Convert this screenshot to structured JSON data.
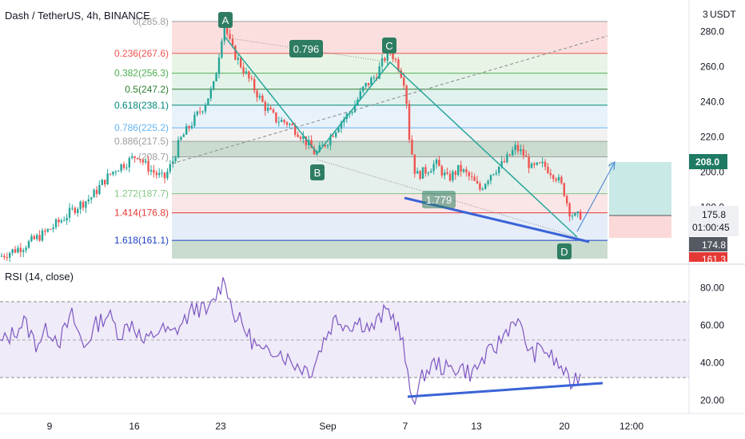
{
  "header": {
    "symbol": "Dash / TetherUS, 4h, BINANCE",
    "currency": "USDT",
    "currency_prefix": "3"
  },
  "colors": {
    "up": "#26a69a",
    "down": "#ef5350",
    "harmonic": "#26a69a",
    "trendline": "#3a63d6",
    "rsi": "#7e57c2",
    "label_green": "#2e7d62"
  },
  "chart_data": [
    {
      "type": "candlestick",
      "title": "Dash / TetherUS, 4h, BINANCE",
      "ylim": [
        148,
        298
      ],
      "price_axis_ticks": [
        {
          "value": 280,
          "label": "280.0"
        },
        {
          "value": 260,
          "label": "260.0"
        },
        {
          "value": 240,
          "label": "240.0"
        },
        {
          "value": 220,
          "label": "220.0"
        },
        {
          "value": 200,
          "label": "200.0"
        },
        {
          "value": 180,
          "label": "180.0"
        }
      ],
      "time_axis_labels": [
        "9",
        "16",
        "23",
        "Sep",
        "7",
        "13",
        "20",
        "12:00"
      ],
      "ohlc_path_points": [
        [
          0,
          152
        ],
        [
          10,
          154
        ],
        [
          30,
          158
        ],
        [
          55,
          165
        ],
        [
          75,
          172
        ],
        [
          95,
          180
        ],
        [
          115,
          186
        ],
        [
          130,
          195
        ],
        [
          145,
          202
        ],
        [
          160,
          206
        ],
        [
          172,
          210
        ],
        [
          182,
          204
        ],
        [
          192,
          200
        ],
        [
          205,
          196
        ],
        [
          215,
          205
        ],
        [
          225,
          218
        ],
        [
          240,
          228
        ],
        [
          255,
          238
        ],
        [
          268,
          250
        ],
        [
          280,
          285
        ],
        [
          290,
          270
        ],
        [
          300,
          262
        ],
        [
          315,
          250
        ],
        [
          330,
          238
        ],
        [
          345,
          230
        ],
        [
          360,
          228
        ],
        [
          375,
          222
        ],
        [
          395,
          210
        ],
        [
          410,
          218
        ],
        [
          425,
          228
        ],
        [
          440,
          235
        ],
        [
          455,
          248
        ],
        [
          470,
          255
        ],
        [
          487,
          270
        ],
        [
          497,
          262
        ],
        [
          507,
          250
        ],
        [
          512,
          220
        ],
        [
          520,
          198
        ],
        [
          530,
          200
        ],
        [
          545,
          205
        ],
        [
          560,
          196
        ],
        [
          575,
          202
        ],
        [
          590,
          196
        ],
        [
          600,
          190
        ],
        [
          615,
          200
        ],
        [
          630,
          205
        ],
        [
          645,
          214
        ],
        [
          655,
          210
        ],
        [
          665,
          202
        ],
        [
          680,
          204
        ],
        [
          695,
          198
        ],
        [
          705,
          190
        ],
        [
          712,
          178
        ],
        [
          720,
          174
        ],
        [
          728,
          176
        ]
      ],
      "fib_levels": [
        {
          "ratio": "0",
          "price": 285.8,
          "label": "0(285.8)"
        },
        {
          "ratio": "0.236",
          "price": 267.6,
          "label": "0.236(267.6)"
        },
        {
          "ratio": "0.382",
          "price": 256.3,
          "label": "0.382(256.3)"
        },
        {
          "ratio": "0.5",
          "price": 247.2,
          "label": "0.5(247.2)"
        },
        {
          "ratio": "0.618",
          "price": 238.1,
          "label": "0.618(238.1)"
        },
        {
          "ratio": "0.786",
          "price": 225.2,
          "label": "0.786(225.2)"
        },
        {
          "ratio": "0.886",
          "price": 217.5,
          "label": "0.886(217.5)"
        },
        {
          "ratio": "1",
          "price": 208.7,
          "label": "(208.7)"
        },
        {
          "ratio": "1.272",
          "price": 187.7,
          "label": "1.272(187.7)"
        },
        {
          "ratio": "1.414",
          "price": 176.8,
          "label": "1.414(176.8)"
        },
        {
          "ratio": "1.618",
          "price": 161.1,
          "label": "1.618(161.1)"
        }
      ],
      "harmonic_points": [
        {
          "label": "A",
          "price": 285.8
        },
        {
          "label": "B",
          "price": 210
        },
        {
          "label": "C",
          "price": 270
        },
        {
          "label": "D",
          "price": 161
        }
      ],
      "harmonic_ratios": [
        "0.796",
        "1.779"
      ],
      "price_tags": [
        {
          "value": "208.0",
          "kind": "target"
        },
        {
          "value": "175.8",
          "countdown": "01:00:45",
          "kind": "last"
        },
        {
          "value": "174.8",
          "kind": "level"
        },
        {
          "value": "161.3",
          "kind": "stop"
        }
      ]
    },
    {
      "type": "line",
      "title": "RSI (14, close)",
      "ylim": [
        13,
        92
      ],
      "y_ticks": [
        "80.00",
        "60.00",
        "40.00",
        "20.00"
      ],
      "bands": {
        "upper": 70,
        "middle": 50,
        "lower": 30
      },
      "rsi_path_points": [
        [
          0,
          50
        ],
        [
          15,
          55
        ],
        [
          30,
          62
        ],
        [
          45,
          50
        ],
        [
          60,
          58
        ],
        [
          75,
          52
        ],
        [
          90,
          65
        ],
        [
          105,
          48
        ],
        [
          120,
          60
        ],
        [
          135,
          66
        ],
        [
          150,
          55
        ],
        [
          165,
          62
        ],
        [
          180,
          50
        ],
        [
          200,
          58
        ],
        [
          215,
          55
        ],
        [
          230,
          62
        ],
        [
          245,
          70
        ],
        [
          260,
          66
        ],
        [
          275,
          80
        ],
        [
          282,
          85
        ],
        [
          290,
          68
        ],
        [
          300,
          62
        ],
        [
          315,
          52
        ],
        [
          330,
          44
        ],
        [
          345,
          48
        ],
        [
          360,
          42
        ],
        [
          375,
          38
        ],
        [
          390,
          36
        ],
        [
          405,
          52
        ],
        [
          420,
          64
        ],
        [
          435,
          60
        ],
        [
          450,
          62
        ],
        [
          465,
          58
        ],
        [
          480,
          66
        ],
        [
          487,
          68
        ],
        [
          497,
          60
        ],
        [
          505,
          48
        ],
        [
          512,
          25
        ],
        [
          520,
          21
        ],
        [
          530,
          34
        ],
        [
          545,
          40
        ],
        [
          560,
          36
        ],
        [
          575,
          38
        ],
        [
          590,
          34
        ],
        [
          605,
          42
        ],
        [
          620,
          48
        ],
        [
          635,
          58
        ],
        [
          645,
          64
        ],
        [
          655,
          54
        ],
        [
          665,
          44
        ],
        [
          680,
          48
        ],
        [
          695,
          40
        ],
        [
          705,
          36
        ],
        [
          712,
          28
        ],
        [
          720,
          32
        ],
        [
          728,
          35
        ]
      ]
    }
  ]
}
